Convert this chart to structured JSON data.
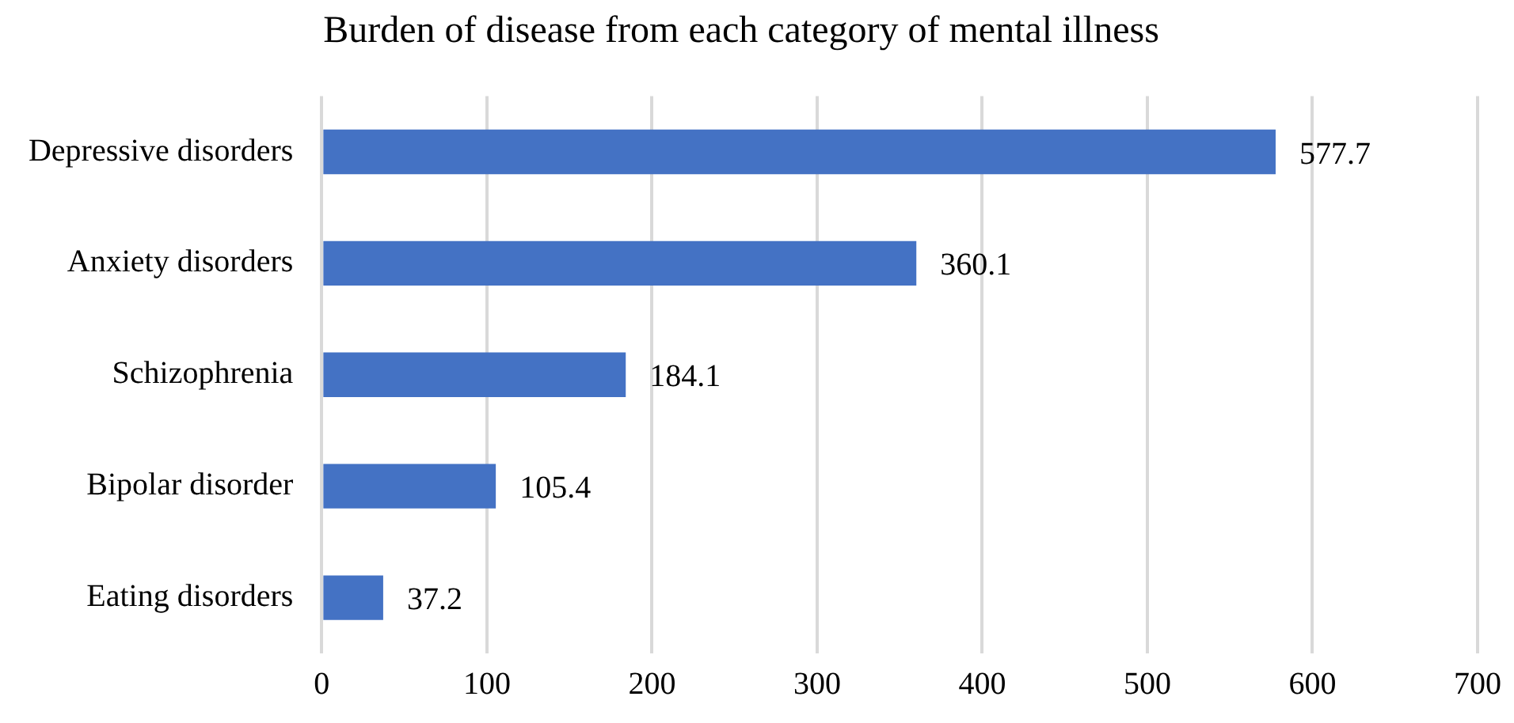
{
  "chart_data": {
    "type": "bar",
    "orientation": "horizontal",
    "title": "Burden of disease from each category of mental illness",
    "categories": [
      "Depressive disorders",
      "Anxiety disorders",
      "Schizophrenia",
      "Bipolar disorder",
      "Eating disorders"
    ],
    "values": [
      577.7,
      360.1,
      184.1,
      105.4,
      37.2
    ],
    "color": "#4472c4",
    "xlim": [
      0,
      700
    ],
    "xticks": [
      0,
      100,
      200,
      300,
      400,
      500,
      600,
      700
    ],
    "grid": "x",
    "data_labels": true,
    "legend": false
  }
}
